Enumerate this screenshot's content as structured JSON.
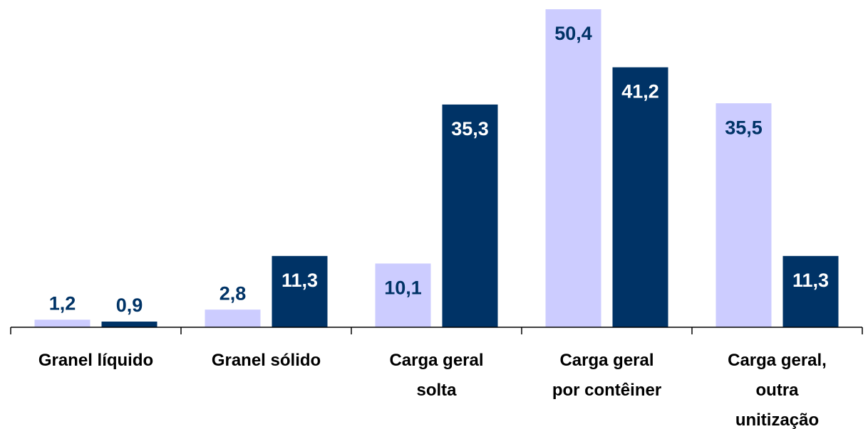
{
  "chart_data": {
    "type": "bar",
    "categories": [
      [
        "Granel líquido"
      ],
      [
        "Granel sólido"
      ],
      [
        "Carga geral",
        "solta"
      ],
      [
        "Carga geral",
        "por contêiner"
      ],
      [
        "Carga geral,",
        "outra",
        "unitização"
      ]
    ],
    "series": [
      {
        "color": "#ccccff",
        "values": [
          1.2,
          2.8,
          10.1,
          50.4,
          35.5
        ],
        "value_labels": [
          "1,2",
          "2,8",
          "10,1",
          "50,4",
          "35,5"
        ]
      },
      {
        "color": "#003366",
        "values": [
          0.9,
          11.3,
          35.3,
          41.2,
          11.3
        ],
        "value_labels": [
          "0,9",
          "11,3",
          "35,3",
          "41,2",
          "11,3"
        ]
      }
    ]
  }
}
